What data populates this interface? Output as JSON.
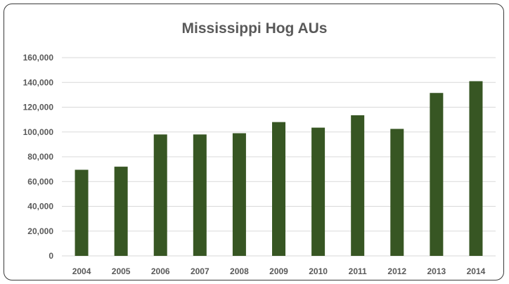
{
  "chart_data": {
    "type": "bar",
    "title": "Mississippi Hog AUs",
    "xlabel": "",
    "ylabel": "",
    "categories": [
      "2004",
      "2005",
      "2006",
      "2007",
      "2008",
      "2009",
      "2010",
      "2011",
      "2012",
      "2013",
      "2014"
    ],
    "values": [
      69500,
      72000,
      98000,
      98000,
      99000,
      108000,
      103500,
      113500,
      102500,
      131500,
      141000
    ],
    "ylim": [
      0,
      160000
    ],
    "yticks": [
      "0",
      "20,000",
      "40,000",
      "60,000",
      "80,000",
      "100,000",
      "120,000",
      "140,000",
      "160,000"
    ],
    "ytick_values": [
      0,
      20000,
      40000,
      60000,
      80000,
      100000,
      120000,
      140000,
      160000
    ],
    "bar_color": "#375623",
    "grid": true,
    "legend": "none"
  }
}
